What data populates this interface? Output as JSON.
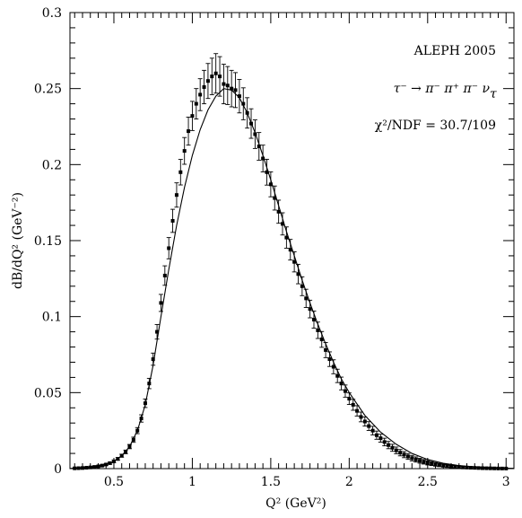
{
  "chart_data": {
    "type": "scatter",
    "title": "",
    "xlabel": "Q² (GeV²)",
    "ylabel": "dB/dQ² (GeV⁻²)",
    "xlim": [
      0.22,
      3.05
    ],
    "ylim": [
      0,
      0.3
    ],
    "x_ticks": [
      0.5,
      1,
      1.5,
      2,
      2.5,
      3
    ],
    "x_tick_labels": [
      "0.5",
      "1",
      "1.5",
      "2",
      "2.5",
      "3"
    ],
    "y_ticks": [
      0,
      0.05,
      0.1,
      0.15,
      0.2,
      0.25,
      0.3
    ],
    "y_tick_labels": [
      "0",
      "0.05",
      "0.1",
      "0.15",
      "0.2",
      "0.25",
      "0.3"
    ],
    "grid": false,
    "annotations": {
      "experiment": "ALEPH 2005",
      "decay": "τ⁻ → π⁻ π⁺ π⁻ ν",
      "decay_sub": "τ",
      "chi2": "χ²/NDF = 30.7/109"
    },
    "series": [
      {
        "type": "scatter",
        "x": [
          0.25,
          0.275,
          0.3,
          0.325,
          0.35,
          0.375,
          0.4,
          0.425,
          0.45,
          0.475,
          0.5,
          0.525,
          0.55,
          0.575,
          0.6,
          0.625,
          0.65,
          0.675,
          0.7,
          0.725,
          0.75,
          0.775,
          0.8,
          0.825,
          0.85,
          0.875,
          0.9,
          0.925,
          0.95,
          0.975,
          1.0,
          1.025,
          1.05,
          1.075,
          1.1,
          1.125,
          1.15,
          1.175,
          1.2,
          1.225,
          1.25,
          1.275,
          1.3,
          1.325,
          1.35,
          1.375,
          1.4,
          1.425,
          1.45,
          1.475,
          1.5,
          1.525,
          1.55,
          1.575,
          1.6,
          1.625,
          1.65,
          1.675,
          1.7,
          1.725,
          1.75,
          1.775,
          1.8,
          1.825,
          1.85,
          1.875,
          1.9,
          1.925,
          1.95,
          1.975,
          2.0,
          2.025,
          2.05,
          2.075,
          2.1,
          2.125,
          2.15,
          2.175,
          2.2,
          2.225,
          2.25,
          2.275,
          2.3,
          2.325,
          2.35,
          2.375,
          2.4,
          2.425,
          2.45,
          2.475,
          2.5,
          2.525,
          2.55,
          2.575,
          2.6,
          2.625,
          2.65,
          2.675,
          2.7,
          2.725,
          2.75,
          2.775,
          2.8,
          2.825,
          2.85,
          2.875,
          2.9,
          2.925,
          2.95,
          2.975,
          3.0
        ],
        "y": [
          0.0002,
          0.0003,
          0.0004,
          0.0006,
          0.0008,
          0.0011,
          0.0015,
          0.002,
          0.0027,
          0.0036,
          0.0048,
          0.0064,
          0.0085,
          0.011,
          0.0145,
          0.019,
          0.025,
          0.033,
          0.043,
          0.056,
          0.072,
          0.09,
          0.109,
          0.127,
          0.145,
          0.163,
          0.18,
          0.195,
          0.209,
          0.222,
          0.232,
          0.24,
          0.246,
          0.251,
          0.255,
          0.258,
          0.26,
          0.258,
          0.253,
          0.252,
          0.25,
          0.249,
          0.245,
          0.24,
          0.234,
          0.227,
          0.22,
          0.212,
          0.204,
          0.195,
          0.187,
          0.178,
          0.169,
          0.161,
          0.152,
          0.144,
          0.136,
          0.128,
          0.12,
          0.112,
          0.105,
          0.098,
          0.091,
          0.085,
          0.078,
          0.072,
          0.067,
          0.061,
          0.056,
          0.051,
          0.046,
          0.042,
          0.038,
          0.034,
          0.031,
          0.028,
          0.025,
          0.022,
          0.02,
          0.0175,
          0.0155,
          0.0137,
          0.012,
          0.0105,
          0.0092,
          0.008,
          0.0069,
          0.006,
          0.0052,
          0.0045,
          0.0038,
          0.0033,
          0.0028,
          0.0024,
          0.002,
          0.0017,
          0.0014,
          0.0012,
          0.001,
          0.0008,
          0.0007,
          0.0006,
          0.0005,
          0.0004,
          0.0003,
          0.00025,
          0.0002,
          0.00015,
          0.0001,
          8e-05,
          6e-05
        ],
        "err": [
          0.0003,
          0.0003,
          0.0003,
          0.0004,
          0.0004,
          0.0004,
          0.0005,
          0.0005,
          0.0006,
          0.0007,
          0.0008,
          0.0009,
          0.001,
          0.0012,
          0.0014,
          0.0017,
          0.002,
          0.0024,
          0.0028,
          0.0034,
          0.004,
          0.0048,
          0.0056,
          0.0064,
          0.007,
          0.0076,
          0.008,
          0.0084,
          0.0088,
          0.0092,
          0.0096,
          0.01,
          0.0105,
          0.011,
          0.0115,
          0.012,
          0.013,
          0.013,
          0.013,
          0.0125,
          0.012,
          0.0115,
          0.011,
          0.0105,
          0.01,
          0.0097,
          0.0094,
          0.0091,
          0.0088,
          0.0085,
          0.0082,
          0.0079,
          0.0076,
          0.0073,
          0.007,
          0.0068,
          0.0066,
          0.0064,
          0.0062,
          0.006,
          0.0058,
          0.0056,
          0.0054,
          0.0052,
          0.005,
          0.0048,
          0.0046,
          0.0044,
          0.0042,
          0.004,
          0.0038,
          0.0036,
          0.0034,
          0.0032,
          0.003,
          0.0029,
          0.0028,
          0.0027,
          0.0026,
          0.0025,
          0.0024,
          0.0023,
          0.0022,
          0.0021,
          0.002,
          0.0019,
          0.0018,
          0.0017,
          0.0016,
          0.0015,
          0.0014,
          0.0013,
          0.0012,
          0.0011,
          0.001,
          0.0009,
          0.0008,
          0.0008,
          0.0007,
          0.0007,
          0.0006,
          0.0006,
          0.0005,
          0.0005,
          0.0004,
          0.0004,
          0.0003,
          0.0003,
          0.0003,
          0.0002,
          0.0002
        ]
      },
      {
        "type": "line",
        "x": [
          0.22,
          0.3,
          0.4,
          0.5,
          0.55,
          0.6,
          0.65,
          0.7,
          0.75,
          0.8,
          0.85,
          0.9,
          0.95,
          1.0,
          1.05,
          1.1,
          1.15,
          1.2,
          1.25,
          1.3,
          1.35,
          1.4,
          1.45,
          1.5,
          1.55,
          1.6,
          1.65,
          1.7,
          1.75,
          1.8,
          1.85,
          1.9,
          1.95,
          2.0,
          2.1,
          2.2,
          2.3,
          2.4,
          2.5,
          2.6,
          2.7,
          2.8,
          2.9,
          3.0,
          3.05
        ],
        "y": [
          0.0001,
          0.0004,
          0.0015,
          0.0048,
          0.0085,
          0.0145,
          0.025,
          0.042,
          0.068,
          0.1,
          0.131,
          0.16,
          0.185,
          0.206,
          0.223,
          0.236,
          0.245,
          0.25,
          0.249,
          0.244,
          0.234,
          0.221,
          0.206,
          0.19,
          0.173,
          0.156,
          0.14,
          0.124,
          0.109,
          0.095,
          0.082,
          0.07,
          0.059,
          0.05,
          0.035,
          0.024,
          0.016,
          0.01,
          0.006,
          0.0035,
          0.002,
          0.0011,
          0.0006,
          0.0003,
          0.0002
        ]
      }
    ]
  }
}
